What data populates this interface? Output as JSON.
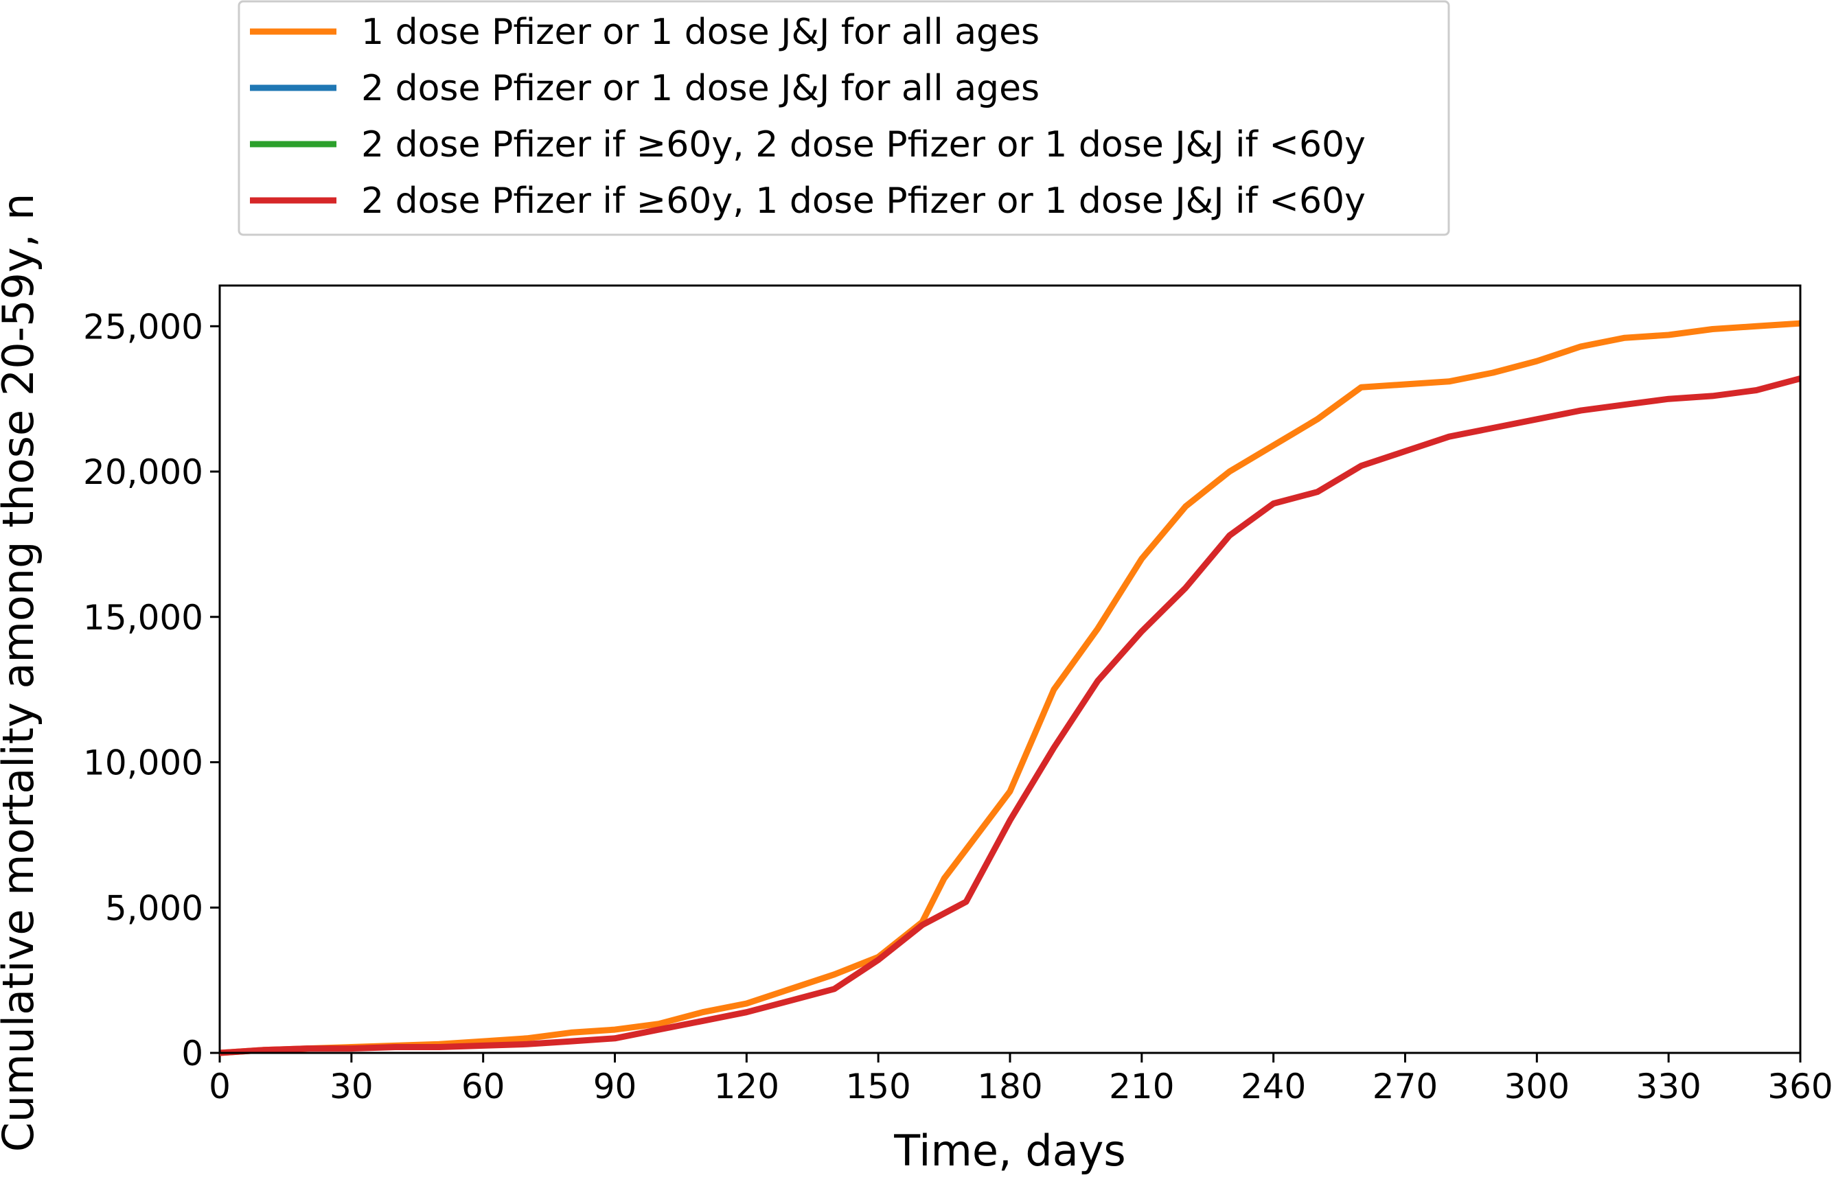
{
  "chart_data": {
    "type": "line",
    "title": "",
    "xlabel": "Time, days",
    "ylabel": "Cumulative mortality among those 20-59y, n",
    "xlim": [
      0,
      360
    ],
    "ylim": [
      0,
      26400
    ],
    "x_ticks": [
      0,
      30,
      60,
      90,
      120,
      150,
      180,
      210,
      240,
      270,
      300,
      330,
      360
    ],
    "x_tick_labels": [
      "0",
      "30",
      "60",
      "90",
      "120",
      "150",
      "180",
      "210",
      "240",
      "270",
      "300",
      "330",
      "360"
    ],
    "y_ticks": [
      0,
      5000,
      10000,
      15000,
      20000,
      25000
    ],
    "y_tick_labels": [
      "0",
      "5,000",
      "10,000",
      "15,000",
      "20,000",
      "25,000"
    ],
    "grid": false,
    "legend_position": "above plot, left",
    "series": [
      {
        "name": "1 dose Pfizer or 1 dose J&J for all ages",
        "color": "#ff7f0e",
        "x": [
          0,
          10,
          20,
          30,
          40,
          50,
          60,
          70,
          80,
          90,
          100,
          110,
          120,
          130,
          140,
          150,
          160,
          165,
          170,
          180,
          190,
          200,
          210,
          220,
          230,
          240,
          250,
          260,
          270,
          280,
          290,
          300,
          310,
          320,
          330,
          340,
          350,
          360
        ],
        "y": [
          0,
          100,
          150,
          200,
          250,
          300,
          400,
          500,
          700,
          800,
          1000,
          1400,
          1700,
          2200,
          2700,
          3300,
          4500,
          6000,
          7000,
          9000,
          12500,
          14600,
          17000,
          18800,
          20000,
          20900,
          21800,
          22900,
          23000,
          23100,
          23400,
          23800,
          24300,
          24600,
          24700,
          24900,
          25000,
          25100
        ]
      },
      {
        "name": "2 dose Pfizer or 1 dose J&J for all ages",
        "color": "#1f77b4",
        "x": [],
        "y": []
      },
      {
        "name": "2 dose Pfizer if ≥60y, 2 dose Pfizer or 1 dose J&J if <60y",
        "color": "#2ca02c",
        "x": [],
        "y": []
      },
      {
        "name": "2 dose Pfizer if ≥60y, 1 dose Pfizer or 1 dose J&J if <60y",
        "color": "#d62728",
        "x": [
          0,
          10,
          20,
          30,
          40,
          50,
          60,
          70,
          80,
          90,
          100,
          110,
          120,
          130,
          140,
          150,
          160,
          170,
          180,
          190,
          200,
          210,
          220,
          230,
          240,
          250,
          260,
          270,
          280,
          290,
          300,
          310,
          320,
          330,
          340,
          350,
          360
        ],
        "y": [
          0,
          100,
          150,
          150,
          200,
          200,
          250,
          300,
          400,
          500,
          800,
          1100,
          1400,
          1800,
          2200,
          3200,
          4400,
          5200,
          8000,
          10500,
          12800,
          14500,
          16000,
          17800,
          18900,
          19300,
          20200,
          20700,
          21200,
          21500,
          21800,
          22100,
          22300,
          22500,
          22600,
          22800,
          23200
        ]
      }
    ]
  }
}
